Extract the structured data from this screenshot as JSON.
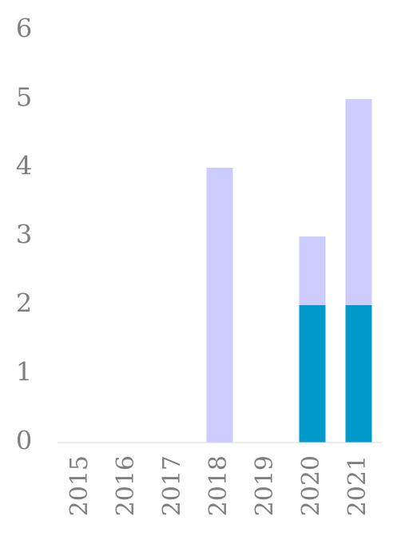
{
  "chart_data": {
    "type": "bar",
    "stacked": true,
    "categories": [
      "2015",
      "2016",
      "2017",
      "2018",
      "2019",
      "2020",
      "2021"
    ],
    "series": [
      {
        "color": "#0099cc",
        "values": [
          0,
          0,
          0,
          0,
          0,
          2,
          2
        ]
      },
      {
        "color": "#ccccff",
        "values": [
          0,
          0,
          0,
          4,
          0,
          1,
          3
        ]
      }
    ],
    "ylim": [
      0,
      6
    ],
    "yticks": [
      0,
      1,
      2,
      3,
      4,
      5,
      6
    ],
    "grid": false
  }
}
